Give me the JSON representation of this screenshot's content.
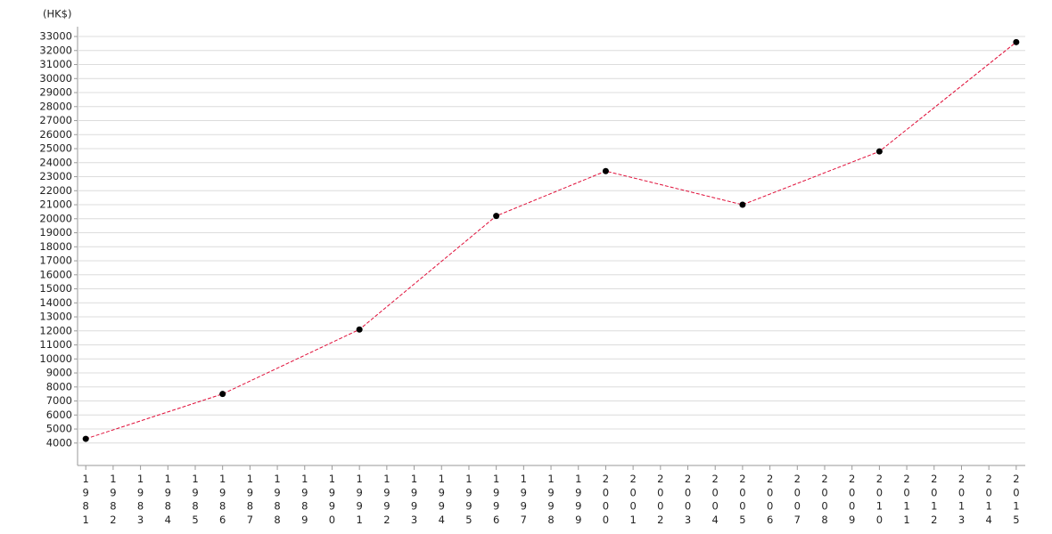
{
  "chart_data": {
    "type": "line",
    "y_axis_label": "(HK$)",
    "x": [
      1981,
      1986,
      1991,
      1996,
      2000,
      2005,
      2010,
      2015
    ],
    "series": [
      {
        "color": "#e0103a",
        "marker_color": "#000000",
        "values": [
          4300,
          7500,
          12100,
          20200,
          23400,
          21000,
          24800,
          32600
        ]
      }
    ],
    "xlim": [
      1980.7,
      2015.33
    ],
    "xticks": [
      1981,
      1982,
      1983,
      1984,
      1985,
      1986,
      1987,
      1988,
      1989,
      1990,
      1991,
      1992,
      1993,
      1994,
      1995,
      1996,
      1997,
      1998,
      1999,
      2000,
      2001,
      2002,
      2003,
      2004,
      2005,
      2006,
      2007,
      2008,
      2009,
      2010,
      2011,
      2012,
      2013,
      2014,
      2015
    ],
    "ylim": [
      2400,
      33700
    ],
    "yticks": [
      4000,
      5000,
      6000,
      7000,
      8000,
      9000,
      10000,
      11000,
      12000,
      13000,
      14000,
      15000,
      16000,
      17000,
      18000,
      19000,
      20000,
      21000,
      22000,
      23000,
      24000,
      25000,
      26000,
      27000,
      28000,
      29000,
      30000,
      31000,
      32000,
      33000
    ],
    "grid": true,
    "line_style": "dashed"
  }
}
